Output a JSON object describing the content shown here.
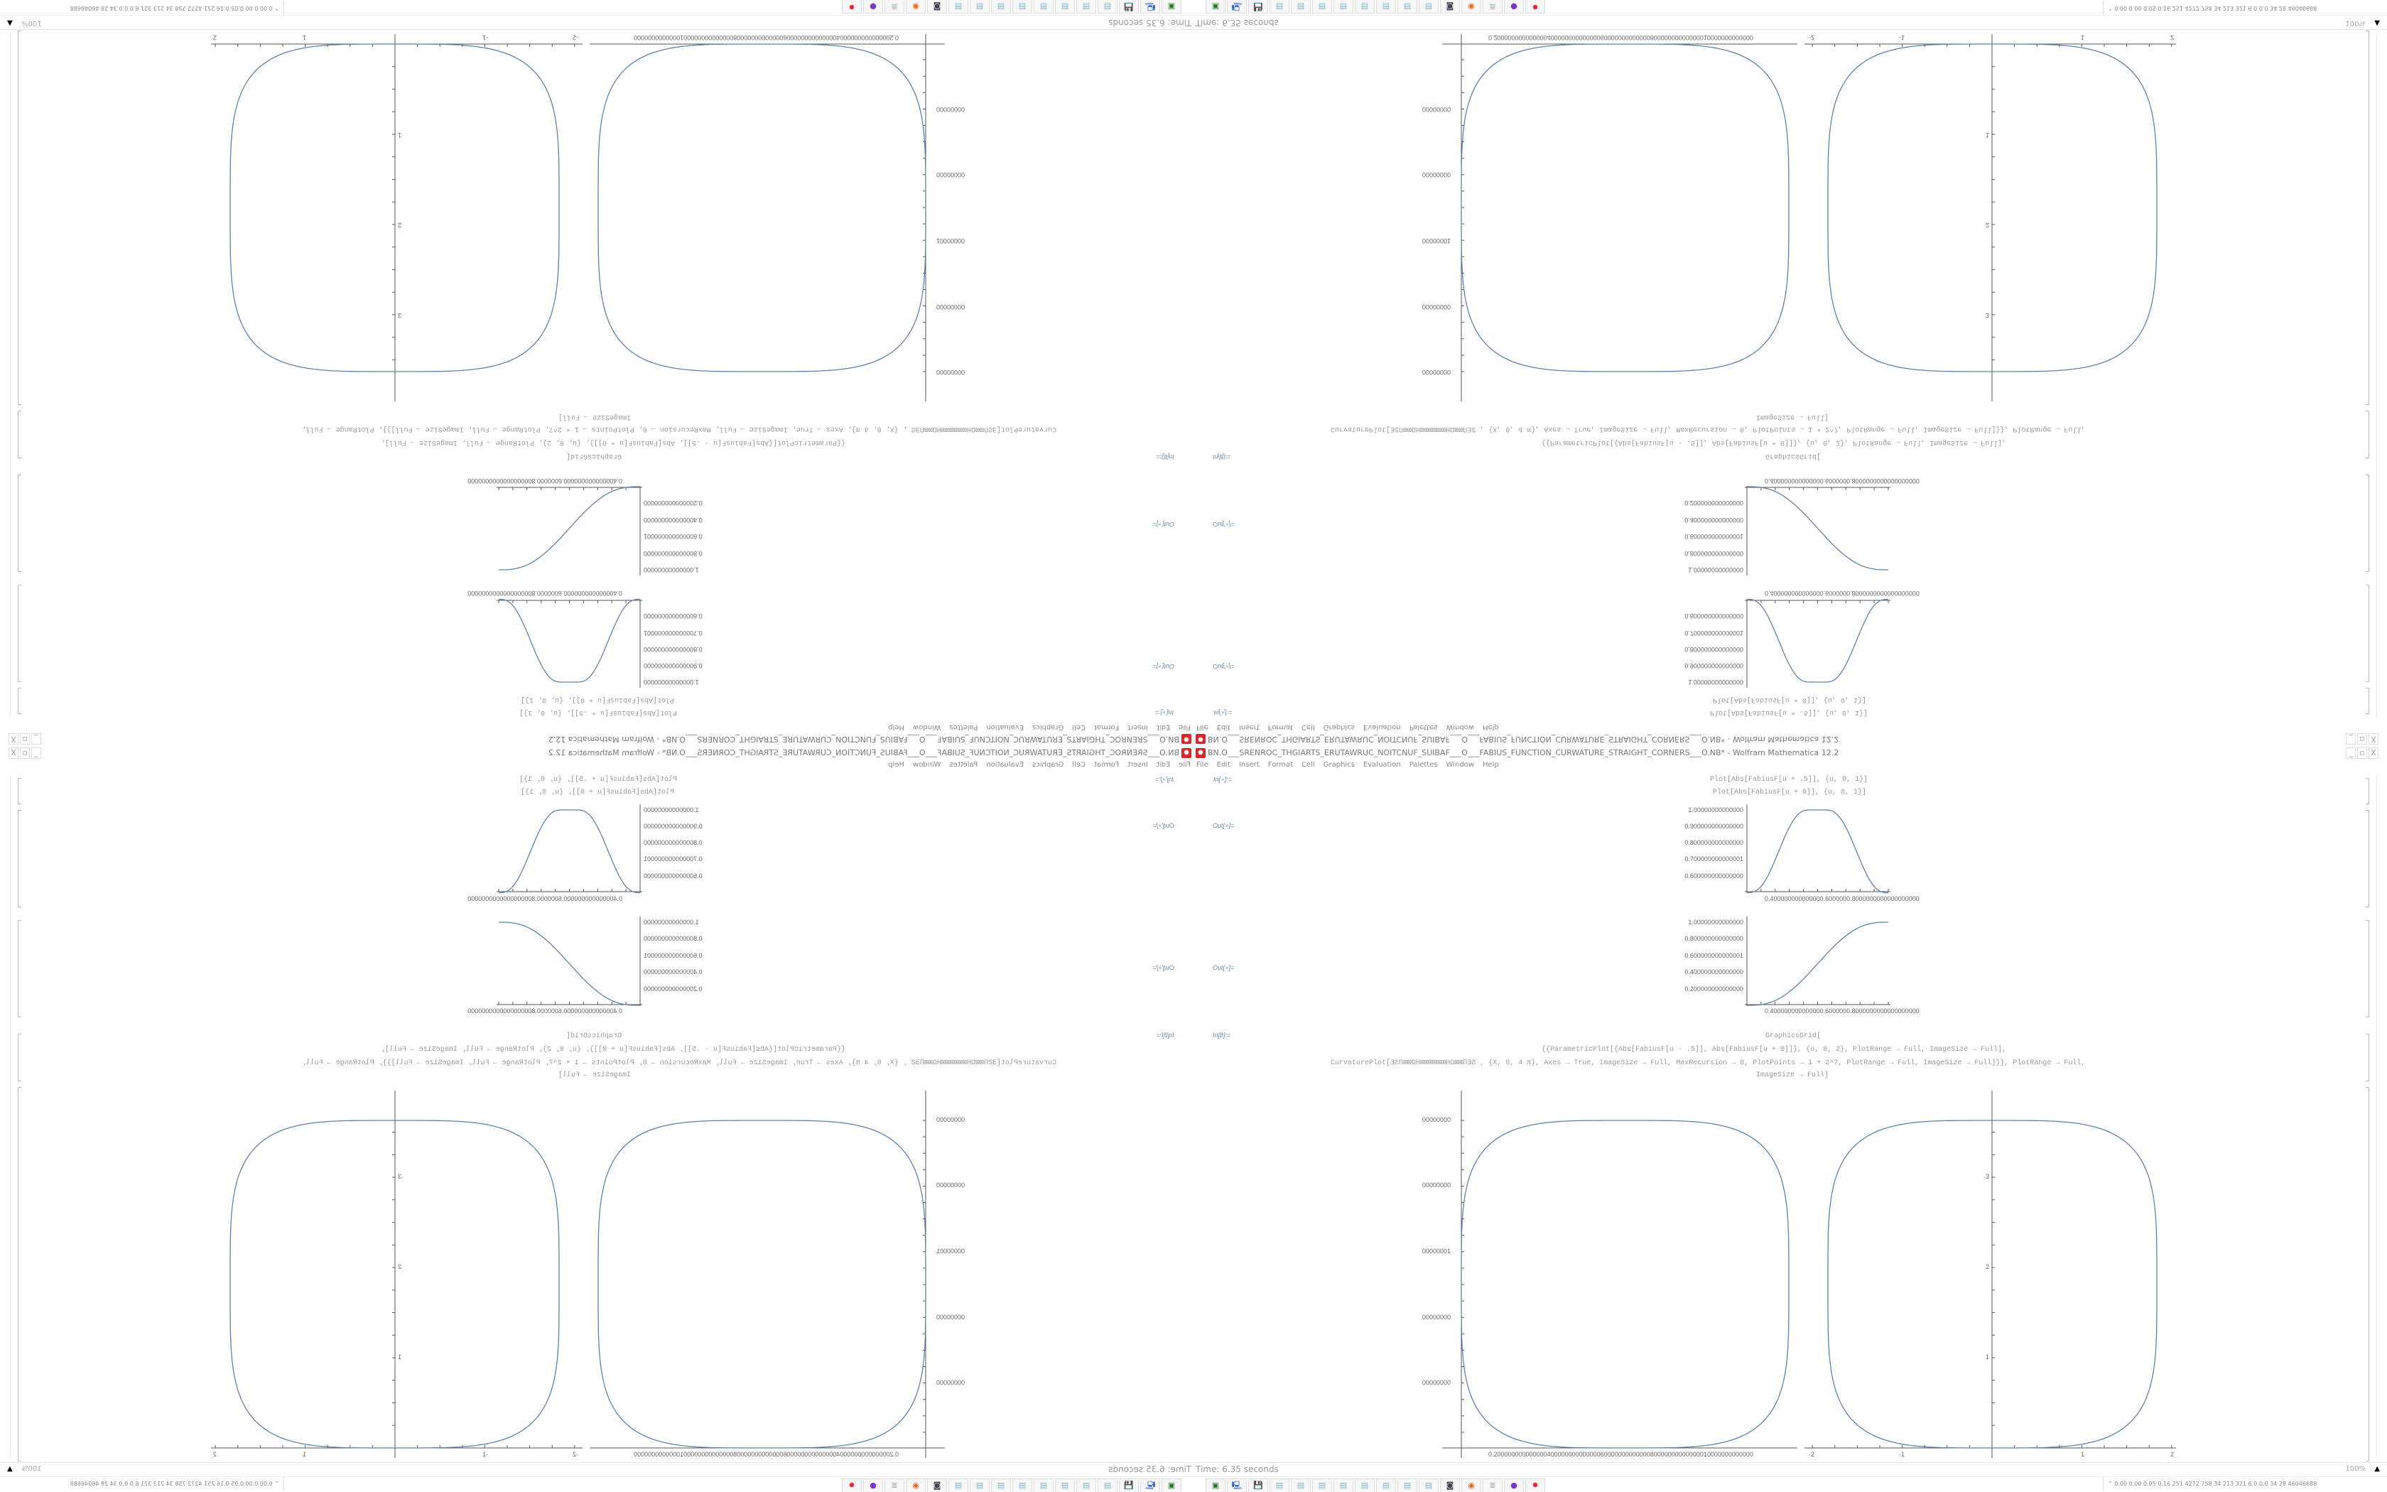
{
  "window": {
    "title": "BN.O___SRENROC_THGIARTS_ERUTAWRUC_NOITCNUF_SUIBAF___O___FABIUS_FUNCTION_CURWATURE_STRAIGHT_CORNERS___O.NB* - Wolfram Mathematica 12.2",
    "controls": [
      "_",
      "▫",
      "X"
    ]
  },
  "menu": [
    "File",
    "Edit",
    "Insert",
    "Format",
    "Cell",
    "Graphics",
    "Evaluation",
    "Palettes",
    "Window",
    "Help"
  ],
  "cells": {
    "in1_label": "In[∘]:=",
    "in1_code": [
      "Plot[Abs[FabiusF[u + .5]], {u, 0, 1}]",
      "Plot[Abs[FabiusF[u + 0]], {u, 0, 1}]"
    ],
    "out1_label": "Out[∘]=",
    "out2_label": "Out[∘]=",
    "plot1": {
      "yticks": [
        "1.00000000000000",
        "0.900000000000000",
        "0.800000000000000",
        "0.700000000000001",
        "0.600000000000000"
      ],
      "xticks": "0.400000000000000.6000000.8000000000000000000"
    },
    "plot2": {
      "yticks": [
        "1.00000000000000",
        "0.800000000000000",
        "0.600000000000001",
        "0.400000000000000",
        "0.200000000000000"
      ],
      "xticks": "0.400000000000000.6000000.8000000000000000000"
    },
    "in8_label": "In[8]:=",
    "in8_code": [
      "GraphicsGrid[",
      "{{ParametricPlot[{Abs[FabiusF[u - .5]], Abs[FabiusF[u + 0]]}, {u, 0, 2}, PlotRange → Full, ImageSize → Full],",
      "CurvaturePlot[ƎƧΠ⊠⊠ΩΗ⊠⊠⊠⊠⊠⊠ΗΩ⊠⊠ΠƎƧ          , {X, 0, 4 π}, Axes → True, ImageSize → Full, MaxRecursion → 0, PlotPoints → 1 + 2^7, PlotRange → Full, ImageSize → Full]}}, PlotRange → Full,",
      "ImageSize → Full]"
    ],
    "grid_left_yticks": [
      "00000000",
      "00000000",
      "00000001",
      "00000000",
      "00000000"
    ],
    "grid_left_xticks": "0.2000000000000004000000000000006000000000000080000000000000010000000000000",
    "grid_right_yticks": [
      "3",
      "2",
      "1"
    ],
    "grid_right_xticks": [
      "-2",
      "-1",
      "1",
      "2"
    ]
  },
  "status": {
    "time": "Time: 6.35 seconds",
    "zoom": "100%"
  },
  "taskbar": {
    "icons": [
      "terminal-icon",
      "computer-icon",
      "floppy-64-icon",
      "notepad-icon",
      "notepad-icon",
      "notepad-icon",
      "notepad-icon",
      "notepad-icon",
      "notepad-icon",
      "notepad-icon",
      "notepad-icon",
      "webcam-icon",
      "firefox-icon",
      "document-icon",
      "purple-app-icon",
      "mathematica-icon"
    ],
    "tray_text": "0.00 0.00 0.05 0.16 251 4272 758 34 213 321 6.0 0.0 34 28 46046688"
  },
  "colors": {
    "curve": "#5e81ac",
    "accent": "#d8262b"
  }
}
